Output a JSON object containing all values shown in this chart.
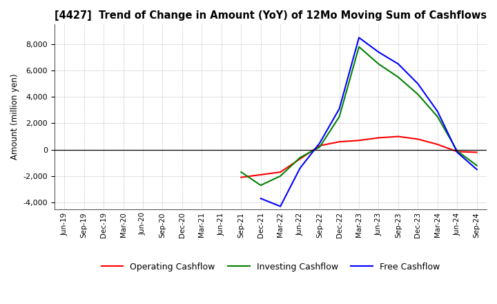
{
  "title": "[4427]  Trend of Change in Amount (YoY) of 12Mo Moving Sum of Cashflows",
  "ylabel": "Amount (million yen)",
  "x_labels": [
    "Jun-19",
    "Sep-19",
    "Dec-19",
    "Mar-20",
    "Jun-20",
    "Sep-20",
    "Dec-20",
    "Mar-21",
    "Jun-21",
    "Sep-21",
    "Dec-21",
    "Mar-22",
    "Jun-22",
    "Sep-22",
    "Dec-22",
    "Mar-23",
    "Jun-23",
    "Sep-23",
    "Dec-23",
    "Mar-24",
    "Jun-24",
    "Sep-24"
  ],
  "operating": [
    null,
    null,
    null,
    null,
    null,
    null,
    null,
    null,
    null,
    -2100,
    -1900,
    -1700,
    -700,
    300,
    600,
    700,
    900,
    1000,
    800,
    400,
    -150,
    -200
  ],
  "investing": [
    null,
    null,
    null,
    null,
    null,
    null,
    null,
    null,
    null,
    -1700,
    -2700,
    -2000,
    -600,
    200,
    2500,
    7800,
    6500,
    5500,
    4200,
    2500,
    -100,
    -1200
  ],
  "free": [
    null,
    null,
    null,
    null,
    null,
    null,
    null,
    null,
    null,
    null,
    -3700,
    -4300,
    -1400,
    500,
    3100,
    8500,
    7400,
    6500,
    5000,
    2900,
    -200,
    -1500
  ],
  "ylim": [
    -4500,
    9500
  ],
  "yticks": [
    -4000,
    -2000,
    0,
    2000,
    4000,
    6000,
    8000
  ],
  "colors": {
    "operating": "#ff0000",
    "investing": "#008000",
    "free": "#0000ff"
  },
  "legend_labels": [
    "Operating Cashflow",
    "Investing Cashflow",
    "Free Cashflow"
  ]
}
